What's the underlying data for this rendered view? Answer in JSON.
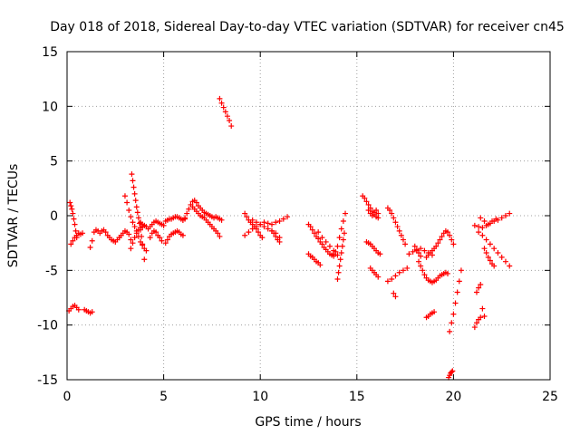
{
  "chart_data": {
    "type": "scatter",
    "title": "Day 018 of 2018, Sidereal Day-to-day VTEC variation (SDTVAR) for receiver cn45",
    "xlabel": "GPS time / hours",
    "ylabel": "SDTVAR / TECUs",
    "xlim": [
      0,
      25
    ],
    "ylim": [
      -15,
      15
    ],
    "x_ticks": [
      0,
      5,
      10,
      15,
      20,
      25
    ],
    "y_ticks": [
      -15,
      -10,
      -5,
      0,
      5,
      10,
      15
    ],
    "x_tick_labels": [
      "0",
      "5",
      "10",
      "15",
      "20",
      "25"
    ],
    "y_tick_labels": [
      "-15",
      "-10",
      "-5",
      "0",
      "5",
      "10",
      "15"
    ],
    "grid": true,
    "marker": "plus",
    "color": "#ff0000",
    "series": [
      {
        "name": "s1",
        "x": [
          0.15,
          0.2,
          0.25,
          0.3,
          0.35,
          0.4,
          0.45,
          0.5
        ],
        "y": [
          1.2,
          0.9,
          0.6,
          0.2,
          -0.3,
          -0.8,
          -1.4,
          -2.0
        ]
      },
      {
        "name": "s2",
        "x": [
          0.2,
          0.3,
          0.4,
          0.5
        ],
        "y": [
          -2.6,
          -2.3,
          -2.0,
          -1.8
        ]
      },
      {
        "name": "s3",
        "x": [
          0.5,
          0.6,
          0.7,
          0.8
        ],
        "y": [
          -1.8,
          -1.6,
          -1.7,
          -1.6
        ]
      },
      {
        "name": "s4",
        "x": [
          0.1,
          0.2,
          0.3,
          0.4,
          0.5,
          0.6
        ],
        "y": [
          -8.7,
          -8.5,
          -8.3,
          -8.2,
          -8.4,
          -8.6
        ]
      },
      {
        "name": "s5",
        "x": [
          0.9,
          1.0,
          1.1,
          1.2,
          1.3
        ],
        "y": [
          -8.6,
          -8.7,
          -8.8,
          -8.9,
          -8.8
        ]
      },
      {
        "name": "s6",
        "x": [
          1.2,
          1.3,
          1.4,
          1.5,
          1.6,
          1.7,
          1.8,
          1.9,
          2.0,
          2.1,
          2.2,
          2.3,
          2.4,
          2.5,
          2.6,
          2.7
        ],
        "y": [
          -2.9,
          -2.3,
          -1.5,
          -1.3,
          -1.4,
          -1.6,
          -1.4,
          -1.3,
          -1.5,
          -1.8,
          -2.0,
          -2.2,
          -2.3,
          -2.4,
          -2.2,
          -2.0
        ]
      },
      {
        "name": "s7",
        "x": [
          2.7,
          2.8,
          2.9,
          3.0,
          3.1,
          3.2,
          3.3
        ],
        "y": [
          -2.0,
          -1.8,
          -1.6,
          -1.4,
          -1.5,
          -1.7,
          -2.2
        ]
      },
      {
        "name": "s8",
        "x": [
          3.0,
          3.1,
          3.2,
          3.3,
          3.4,
          3.5,
          3.6,
          3.7,
          3.8,
          3.9,
          4.0,
          4.1
        ],
        "y": [
          1.8,
          1.2,
          0.5,
          -0.1,
          -0.6,
          -1.0,
          -1.4,
          -1.9,
          -2.4,
          -2.7,
          -3.0,
          -3.2
        ]
      },
      {
        "name": "s9",
        "x": [
          3.35,
          3.4,
          3.45,
          3.5,
          3.55,
          3.6,
          3.65,
          3.7,
          3.75,
          3.8,
          3.85,
          3.9,
          4.0
        ],
        "y": [
          3.8,
          3.2,
          2.6,
          2.0,
          1.4,
          0.8,
          0.3,
          -0.2,
          -0.7,
          -1.3,
          -1.9,
          -2.6,
          -4.0
        ]
      },
      {
        "name": "s10",
        "x": [
          3.3,
          3.4,
          3.5,
          3.6,
          3.7,
          3.8,
          3.9,
          4.0
        ],
        "y": [
          -3.0,
          -2.5,
          -2.0,
          -1.6,
          -1.3,
          -1.1,
          -1.0,
          -0.9
        ]
      },
      {
        "name": "s11",
        "x": [
          3.8,
          3.9,
          4.0,
          4.1,
          4.2,
          4.3,
          4.4,
          4.5,
          4.6,
          4.7,
          4.8,
          4.9,
          5.0
        ],
        "y": [
          -0.6,
          -0.8,
          -0.9,
          -1.0,
          -1.2,
          -1.0,
          -0.8,
          -0.6,
          -0.5,
          -0.6,
          -0.7,
          -0.8,
          -0.9
        ]
      },
      {
        "name": "s12",
        "x": [
          4.3,
          4.4,
          4.5,
          4.6,
          4.7,
          4.8,
          4.9
        ],
        "y": [
          -2.0,
          -1.6,
          -1.4,
          -1.5,
          -1.8,
          -2.0,
          -2.3
        ]
      },
      {
        "name": "s13",
        "x": [
          5.1,
          5.2,
          5.3,
          5.4,
          5.5,
          5.6,
          5.7,
          5.8,
          5.9,
          6.0
        ],
        "y": [
          -2.5,
          -2.2,
          -1.9,
          -1.7,
          -1.6,
          -1.5,
          -1.4,
          -1.5,
          -1.7,
          -1.8
        ]
      },
      {
        "name": "s14",
        "x": [
          5.1,
          5.2,
          5.3,
          5.4,
          5.5,
          5.6,
          5.7,
          5.8,
          5.9,
          6.0,
          6.1
        ],
        "y": [
          -0.5,
          -0.4,
          -0.3,
          -0.3,
          -0.2,
          -0.1,
          -0.1,
          -0.2,
          -0.3,
          -0.4,
          -0.3
        ]
      },
      {
        "name": "s15",
        "x": [
          6.0,
          6.1,
          6.2,
          6.3,
          6.4,
          6.5,
          6.6,
          6.7,
          6.8,
          6.9,
          7.0,
          7.1,
          7.2,
          7.3,
          7.4,
          7.5,
          7.6,
          7.7,
          7.8,
          7.9,
          8.0
        ],
        "y": [
          -0.4,
          -0.2,
          0.2,
          0.6,
          1.0,
          1.3,
          1.4,
          1.2,
          0.9,
          0.7,
          0.5,
          0.3,
          0.2,
          0.1,
          0.0,
          -0.1,
          -0.2,
          -0.1,
          -0.2,
          -0.3,
          -0.4
        ]
      },
      {
        "name": "s16",
        "x": [
          6.5,
          6.6,
          6.7,
          6.8,
          6.9,
          7.0,
          7.1,
          7.2,
          7.3,
          7.4,
          7.5,
          7.6,
          7.7,
          7.8,
          7.9
        ],
        "y": [
          0.8,
          0.6,
          0.4,
          0.2,
          0.0,
          -0.1,
          -0.2,
          -0.4,
          -0.6,
          -0.8,
          -1.0,
          -1.2,
          -1.4,
          -1.6,
          -1.9
        ]
      },
      {
        "name": "s17",
        "x": [
          7.9,
          8.0,
          8.1,
          8.2,
          8.3,
          8.4,
          8.5
        ],
        "y": [
          10.7,
          10.3,
          9.9,
          9.5,
          9.1,
          8.7,
          8.2
        ]
      },
      {
        "name": "s18",
        "x": [
          9.2,
          9.3,
          9.4,
          9.5,
          9.6,
          9.7,
          9.8,
          9.9,
          10.0,
          10.1
        ],
        "y": [
          0.2,
          -0.1,
          -0.4,
          -0.6,
          -0.8,
          -1.0,
          -1.2,
          -1.5,
          -1.8,
          -2.0
        ]
      },
      {
        "name": "s19",
        "x": [
          9.2,
          9.4,
          9.6,
          9.8,
          10.0,
          10.2,
          10.4,
          10.6,
          10.8,
          11.0,
          11.2,
          11.4
        ],
        "y": [
          -1.8,
          -1.5,
          -1.2,
          -1.0,
          -0.8,
          -0.6,
          -0.7,
          -0.8,
          -0.6,
          -0.5,
          -0.3,
          -0.1
        ]
      },
      {
        "name": "s20",
        "x": [
          9.6,
          9.8,
          10.0,
          10.2,
          10.4,
          10.6,
          10.8,
          11.0
        ],
        "y": [
          -0.4,
          -0.6,
          -0.8,
          -1.0,
          -1.2,
          -1.4,
          -1.6,
          -2.0
        ]
      },
      {
        "name": "s21",
        "x": [
          10.6,
          10.7,
          10.8,
          10.9,
          11.0
        ],
        "y": [
          -1.4,
          -1.6,
          -1.9,
          -2.2,
          -2.4
        ]
      },
      {
        "name": "s22",
        "x": [
          12.5,
          12.6,
          12.7,
          12.8,
          12.9,
          13.0,
          13.1,
          13.2,
          13.3,
          13.4,
          13.5,
          13.6,
          13.7,
          13.8
        ],
        "y": [
          -0.8,
          -1.0,
          -1.3,
          -1.6,
          -1.9,
          -2.1,
          -2.4,
          -2.6,
          -2.9,
          -3.1,
          -3.3,
          -3.5,
          -3.6,
          -3.7
        ]
      },
      {
        "name": "s23",
        "x": [
          12.5,
          12.6,
          12.7,
          12.8,
          12.9,
          13.0,
          13.1
        ],
        "y": [
          -3.5,
          -3.7,
          -3.8,
          -4.0,
          -4.2,
          -4.3,
          -4.5
        ]
      },
      {
        "name": "s24",
        "x": [
          13.0,
          13.2,
          13.4,
          13.6,
          13.8,
          14.0
        ],
        "y": [
          -1.5,
          -2.0,
          -2.4,
          -2.8,
          -3.2,
          -3.6
        ]
      },
      {
        "name": "s25",
        "x": [
          13.8,
          13.9,
          14.0,
          14.1,
          14.2,
          14.3,
          14.4
        ],
        "y": [
          -3.5,
          -3.3,
          -2.8,
          -2.0,
          -1.2,
          -0.5,
          0.2
        ]
      },
      {
        "name": "s26",
        "x": [
          14.0,
          14.05,
          14.1,
          14.15,
          14.2,
          14.25,
          14.3,
          14.35
        ],
        "y": [
          -5.8,
          -5.2,
          -4.6,
          -4.0,
          -3.4,
          -2.8,
          -2.2,
          -1.6
        ]
      },
      {
        "name": "s27",
        "x": [
          15.3,
          15.4,
          15.5,
          15.6,
          15.7,
          15.8,
          15.9,
          16.0,
          16.1
        ],
        "y": [
          1.8,
          1.6,
          1.3,
          1.0,
          0.7,
          0.4,
          0.1,
          -0.1,
          -0.2
        ]
      },
      {
        "name": "s28",
        "x": [
          15.6,
          15.7,
          15.8,
          15.9,
          16.0,
          16.1
        ],
        "y": [
          0.5,
          0.2,
          0.0,
          0.3,
          0.5,
          0.2
        ]
      },
      {
        "name": "s29",
        "x": [
          15.5,
          15.6,
          15.7,
          15.8,
          15.9,
          16.0,
          16.1,
          16.2
        ],
        "y": [
          -2.4,
          -2.5,
          -2.6,
          -2.8,
          -3.0,
          -3.2,
          -3.4,
          -3.5
        ]
      },
      {
        "name": "s30",
        "x": [
          15.7,
          15.8,
          15.9,
          16.0,
          16.1
        ],
        "y": [
          -4.8,
          -5.0,
          -5.2,
          -5.4,
          -5.6
        ]
      },
      {
        "name": "s31",
        "x": [
          16.6,
          16.7,
          16.8,
          16.9,
          17.0,
          17.1,
          17.2,
          17.3,
          17.4,
          17.5
        ],
        "y": [
          0.7,
          0.5,
          0.2,
          -0.2,
          -0.6,
          -1.0,
          -1.4,
          -1.8,
          -2.2,
          -2.6
        ]
      },
      {
        "name": "s32",
        "x": [
          16.6,
          16.8,
          17.0,
          17.2,
          17.4,
          17.6
        ],
        "y": [
          -6.0,
          -5.8,
          -5.5,
          -5.2,
          -5.0,
          -4.8
        ]
      },
      {
        "name": "s33",
        "x": [
          16.9,
          17.0
        ],
        "y": [
          -7.1,
          -7.4
        ]
      },
      {
        "name": "s34",
        "x": [
          17.7,
          17.9,
          18.1,
          18.3,
          18.5,
          18.7,
          18.9
        ],
        "y": [
          -3.5,
          -3.3,
          -3.2,
          -3.0,
          -3.2,
          -3.4,
          -3.6
        ]
      },
      {
        "name": "s35",
        "x": [
          18.0,
          18.1,
          18.2,
          18.3
        ],
        "y": [
          -2.8,
          -3.1,
          -3.4,
          -3.7
        ]
      },
      {
        "name": "s36",
        "x": [
          18.2,
          18.3,
          18.4,
          18.5,
          18.6,
          18.7,
          18.8,
          18.9,
          19.0,
          19.1,
          19.2,
          19.3,
          19.4,
          19.5,
          19.6,
          19.7
        ],
        "y": [
          -4.2,
          -4.6,
          -5.0,
          -5.4,
          -5.7,
          -5.9,
          -6.0,
          -6.1,
          -6.0,
          -5.9,
          -5.7,
          -5.5,
          -5.4,
          -5.3,
          -5.2,
          -5.3
        ]
      },
      {
        "name": "s37",
        "x": [
          18.6,
          18.7,
          18.8,
          18.9,
          19.0,
          19.1,
          19.2,
          19.3,
          19.4,
          19.5,
          19.6,
          19.7,
          19.8,
          19.9,
          20.0
        ],
        "y": [
          -3.8,
          -3.6,
          -3.4,
          -3.2,
          -3.0,
          -2.8,
          -2.5,
          -2.2,
          -1.9,
          -1.6,
          -1.4,
          -1.5,
          -1.8,
          -2.2,
          -2.6
        ]
      },
      {
        "name": "s38",
        "x": [
          18.6,
          18.7,
          18.8,
          18.9,
          19.0
        ],
        "y": [
          -9.3,
          -9.2,
          -9.0,
          -8.9,
          -8.8
        ]
      },
      {
        "name": "s39",
        "x": [
          19.8,
          19.9,
          20.0,
          20.1,
          20.2,
          20.3,
          20.4
        ],
        "y": [
          -10.6,
          -9.8,
          -9.0,
          -8.0,
          -7.0,
          -6.0,
          -5.0
        ]
      },
      {
        "name": "s40",
        "x": [
          19.75,
          19.8,
          19.85,
          19.9,
          19.95
        ],
        "y": [
          -14.8,
          -14.6,
          -14.4,
          -14.3,
          -14.2
        ]
      },
      {
        "name": "s41",
        "x": [
          21.1,
          21.2,
          21.3,
          21.4
        ],
        "y": [
          -10.2,
          -9.8,
          -9.5,
          -9.3
        ]
      },
      {
        "name": "s42",
        "x": [
          21.2,
          21.3,
          21.4
        ],
        "y": [
          -7.0,
          -6.6,
          -6.3
        ]
      },
      {
        "name": "s43",
        "x": [
          21.5,
          21.6
        ],
        "y": [
          -8.5,
          -9.2
        ]
      },
      {
        "name": "s44",
        "x": [
          21.1,
          21.3,
          21.5,
          21.7,
          21.9,
          22.1,
          22.3,
          22.5,
          22.7,
          22.9
        ],
        "y": [
          -0.9,
          -1.0,
          -1.1,
          -0.9,
          -0.7,
          -0.5,
          -0.4,
          -0.2,
          0.0,
          0.2
        ]
      },
      {
        "name": "s45",
        "x": [
          21.3,
          21.5,
          21.7,
          21.9,
          22.1,
          22.3,
          22.5,
          22.7,
          22.9
        ],
        "y": [
          -1.5,
          -1.8,
          -2.2,
          -2.6,
          -3.0,
          -3.4,
          -3.8,
          -4.2,
          -4.6
        ]
      },
      {
        "name": "s46",
        "x": [
          21.6,
          21.7,
          21.8,
          21.9,
          22.0,
          22.1
        ],
        "y": [
          -3.0,
          -3.4,
          -3.8,
          -4.1,
          -4.4,
          -4.6
        ]
      },
      {
        "name": "s47",
        "x": [
          21.4,
          21.6,
          21.8,
          22.0,
          22.2
        ],
        "y": [
          -0.2,
          -0.5,
          -0.8,
          -0.5,
          -0.3
        ]
      }
    ]
  }
}
